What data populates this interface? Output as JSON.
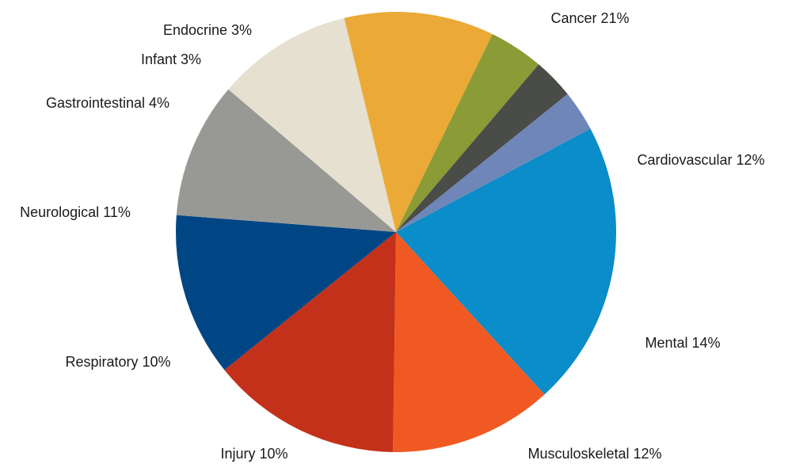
{
  "chart_data": {
    "type": "pie",
    "title": "",
    "slices": [
      {
        "label": "Cancer",
        "value": 21,
        "text": "Cancer 21%",
        "color": "#0a8dc8"
      },
      {
        "label": "Cardiovascular",
        "value": 12,
        "text": "Cardiovascular 12%",
        "color": "#f05a22"
      },
      {
        "label": "Mental",
        "value": 14,
        "text": "Mental 14%",
        "color": "#c4311a"
      },
      {
        "label": "Musculoskeletal",
        "value": 12,
        "text": "Musculoskeletal 12%",
        "color": "#004684"
      },
      {
        "label": "Injury",
        "value": 10,
        "text": "Injury 10%",
        "color": "#989995"
      },
      {
        "label": "Respiratory",
        "value": 10,
        "text": "Respiratory 10%",
        "color": "#e5e0d0"
      },
      {
        "label": "Neurological",
        "value": 11,
        "text": "Neurological 11%",
        "color": "#eba937"
      },
      {
        "label": "Gastrointestinal",
        "value": 4,
        "text": "Gastrointestinal 4%",
        "color": "#8b9b35"
      },
      {
        "label": "Infant",
        "value": 3,
        "text": "Infant 3%",
        "color": "#4a4c47"
      },
      {
        "label": "Endocrine",
        "value": 3,
        "text": "Endocrine 3%",
        "color": "#6e86b8"
      }
    ]
  }
}
